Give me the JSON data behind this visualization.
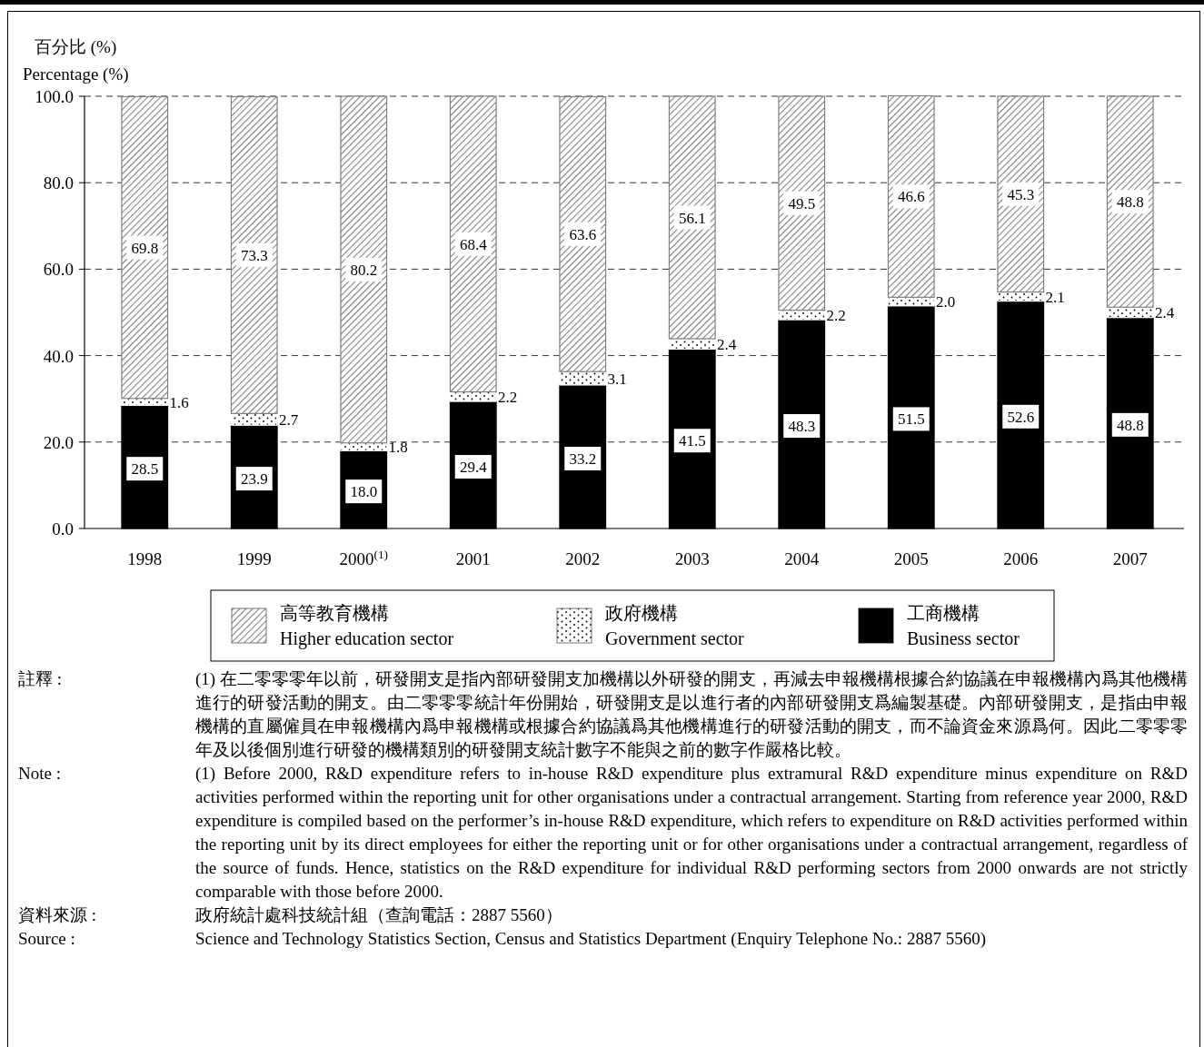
{
  "chart_data": {
    "type": "bar",
    "stacked": true,
    "ylabel": "百分比 (%)\nPercentage (%)",
    "categories": [
      "1998",
      "1999",
      "2000$^{(1)}$",
      "2001",
      "2002",
      "2003",
      "2004",
      "2005",
      "2006",
      "2007"
    ],
    "series": [
      {
        "name": "工商機構\nBusiness sector",
        "color": "#000000",
        "values": [
          28.5,
          23.9,
          18.0,
          29.4,
          33.2,
          41.5,
          48.3,
          51.5,
          52.6,
          48.8
        ],
        "value_labels": [
          "28.5",
          "23.9",
          "18.0",
          "29.4",
          "33.2",
          "41.5",
          "48.3",
          "51.5",
          "52.6",
          "48.8"
        ]
      },
      {
        "name": "政府機構\nGovernment sector",
        "color": "#ffffff",
        "values": [
          1.6,
          2.7,
          1.8,
          2.2,
          3.1,
          2.4,
          2.2,
          2.0,
          2.1,
          2.4
        ],
        "value_labels": [
          "1.6",
          "2.7",
          "1.8",
          "2.2",
          "3.1",
          "2.4",
          "2.2",
          "2.0",
          "2.1",
          "2.4"
        ]
      },
      {
        "name": "高等教育機構\nHigher education sector",
        "color": "#808080",
        "values": [
          69.8,
          73.3,
          80.2,
          68.4,
          63.6,
          56.1,
          49.5,
          46.6,
          45.3,
          48.8
        ],
        "value_labels": [
          "69.8",
          "73.3",
          "80.2",
          "68.4",
          "63.6",
          "56.1",
          "49.5",
          "46.6",
          "45.3",
          "48.8"
        ]
      }
    ],
    "ylim": [
      0,
      100
    ],
    "yticks": [
      {
        "value": 0,
        "label": "0.0"
      },
      {
        "value": 20,
        "label": "20.0"
      },
      {
        "value": 40,
        "label": "40.0"
      },
      {
        "value": 60,
        "label": "60.0"
      },
      {
        "value": 80,
        "label": "80.0"
      },
      {
        "value": 100,
        "label": "100.0"
      }
    ],
    "grid": "y",
    "legend": "bottom",
    "annotations": [
      "註釋 :",
      "(1) 在二零零零年以前，研發開支是指內部研發開支加機構以外研發的開支，再減去申報機構根據合約協議在申報機構內爲其他機構進行的研發活動的開支。由二零零零統計年份開始，研發開支是以進行者的內部研發開支爲編製基礎。內部研發開支，是指由申報機構的直屬僱員在申報機構內爲申報機構或根據合約協議爲其他機構進行的研發活動的開支，而不論資金來源爲何。因此二零零零年及以後個別進行研發的機構類別的研發開支統計數字不能與之前的數字作嚴格比較。",
      "Note :",
      "(1) Before 2000, R&D expenditure refers to in-house R&D expenditure plus extramural R&D expenditure minus expenditure on R&D activities performed within the reporting unit for other organisations under a contractual arrangement.   Starting from reference year 2000, R&D expenditure is compiled based on the performer’s in-house R&D expenditure, which refers to expenditure on R&D activities performed within the reporting unit by its direct employees for either the reporting unit or for other organisations under a contractual arrangement, regardless of the source of funds.   Hence, statistics on the R&D expenditure for individual R&D performing sectors from 2000 onwards are not strictly comparable with those before 2000.",
      "資料來源 :",
      "政府統計處科技統計組（查詢電話：2887 5560）",
      "Source :",
      "Science and Technology Statistics Section, Census and Statistics Department (Enquiry Telephone No.: 2887 5560)"
    ]
  }
}
